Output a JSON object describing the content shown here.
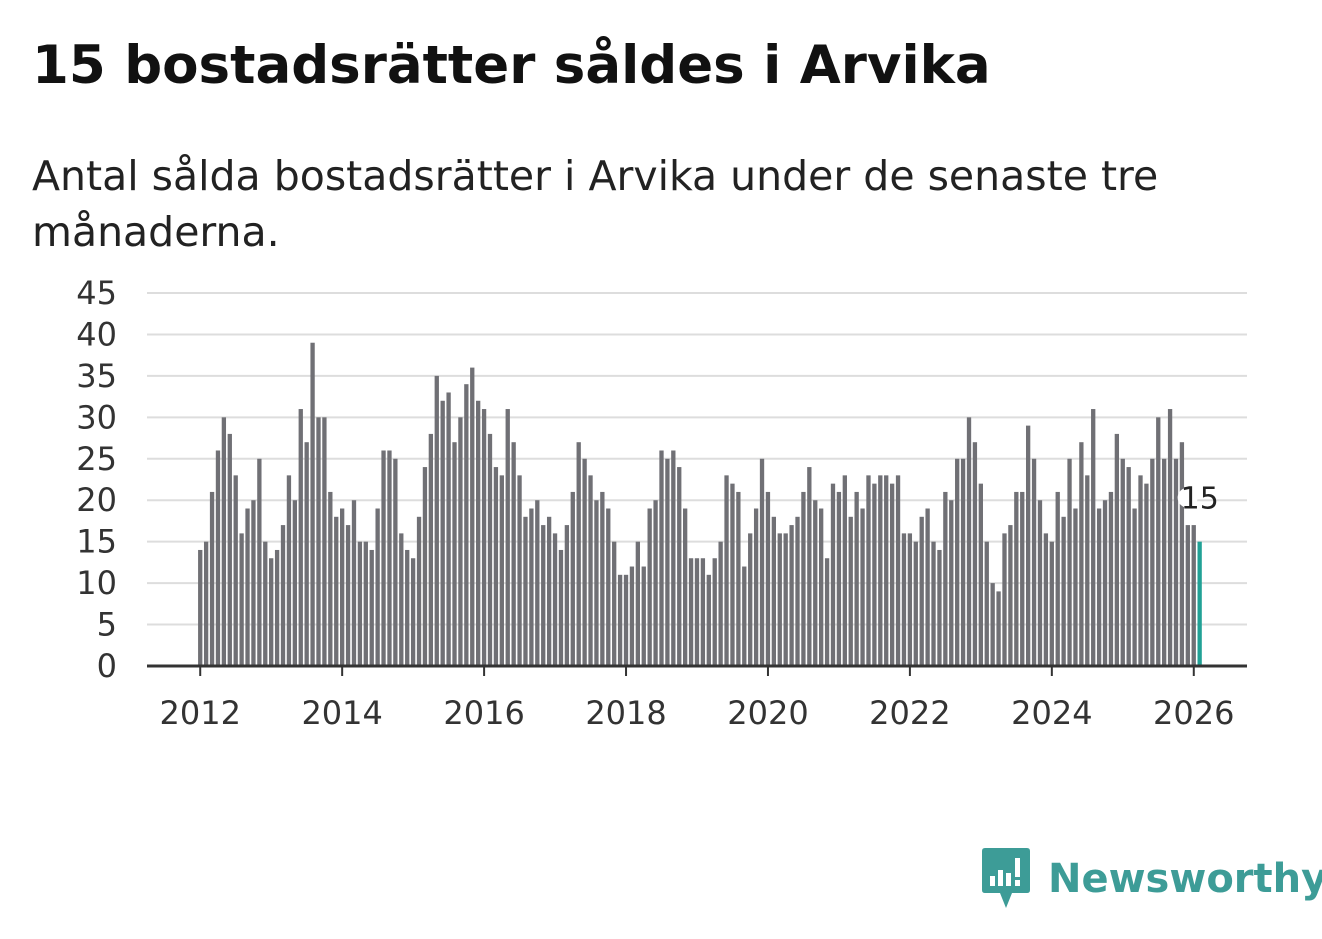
{
  "header": {
    "title": "15 bostadsrätter såldes i Arvika",
    "subtitle": "Antal sålda bostadsrätter i Arvika under de senaste tre månaderna."
  },
  "brand": {
    "name": "Newsworthy",
    "color": "#3d9c97"
  },
  "colors": {
    "bar": "#707075",
    "highlight": "#21a196",
    "gridline": "#dddddd",
    "axis": "#333333"
  },
  "chart_data": {
    "type": "bar",
    "title": "15 bostadsrätter såldes i Arvika",
    "subtitle": "Antal sålda bostadsrätter i Arvika under de senaste tre månaderna.",
    "xlabel": "",
    "ylabel": "",
    "x_start": 2012.0,
    "x_step": 0.08333,
    "xlim": [
      2011.25,
      2026.75
    ],
    "ylim": [
      0,
      45
    ],
    "yticks": [
      "0",
      "5",
      "10",
      "15",
      "20",
      "25",
      "30",
      "35",
      "40",
      "45"
    ],
    "xticks": [
      "2012",
      "2014",
      "2016",
      "2018",
      "2020",
      "2022",
      "2024",
      "2026"
    ],
    "grid": true,
    "values": [
      14,
      15,
      21,
      26,
      30,
      28,
      23,
      16,
      19,
      20,
      25,
      15,
      13,
      14,
      17,
      23,
      20,
      31,
      27,
      39,
      30,
      30,
      21,
      18,
      19,
      17,
      20,
      15,
      15,
      14,
      19,
      26,
      26,
      25,
      16,
      14,
      13,
      18,
      24,
      28,
      35,
      32,
      33,
      27,
      30,
      34,
      36,
      32,
      31,
      28,
      24,
      23,
      31,
      27,
      23,
      18,
      19,
      20,
      17,
      18,
      16,
      14,
      17,
      21,
      27,
      25,
      23,
      20,
      21,
      19,
      15,
      11,
      11,
      12,
      15,
      12,
      19,
      20,
      26,
      25,
      26,
      24,
      19,
      13,
      13,
      13,
      11,
      13,
      15,
      23,
      22,
      21,
      12,
      16,
      19,
      25,
      21,
      18,
      16,
      16,
      17,
      18,
      21,
      24,
      20,
      19,
      13,
      22,
      21,
      23,
      18,
      21,
      19,
      23,
      22,
      23,
      23,
      22,
      23,
      16,
      16,
      15,
      18,
      19,
      15,
      14,
      21,
      20,
      25,
      25,
      30,
      27,
      22,
      15,
      10,
      9,
      16,
      17,
      21,
      21,
      29,
      25,
      20,
      16,
      15,
      21,
      18,
      25,
      19,
      27,
      23,
      31,
      19,
      20,
      21,
      28,
      25,
      24,
      19,
      23,
      22,
      25,
      30,
      25,
      31,
      25,
      27,
      17,
      17,
      15
    ],
    "highlight_index": 169,
    "annotation": {
      "label": "15",
      "index": 169
    }
  }
}
